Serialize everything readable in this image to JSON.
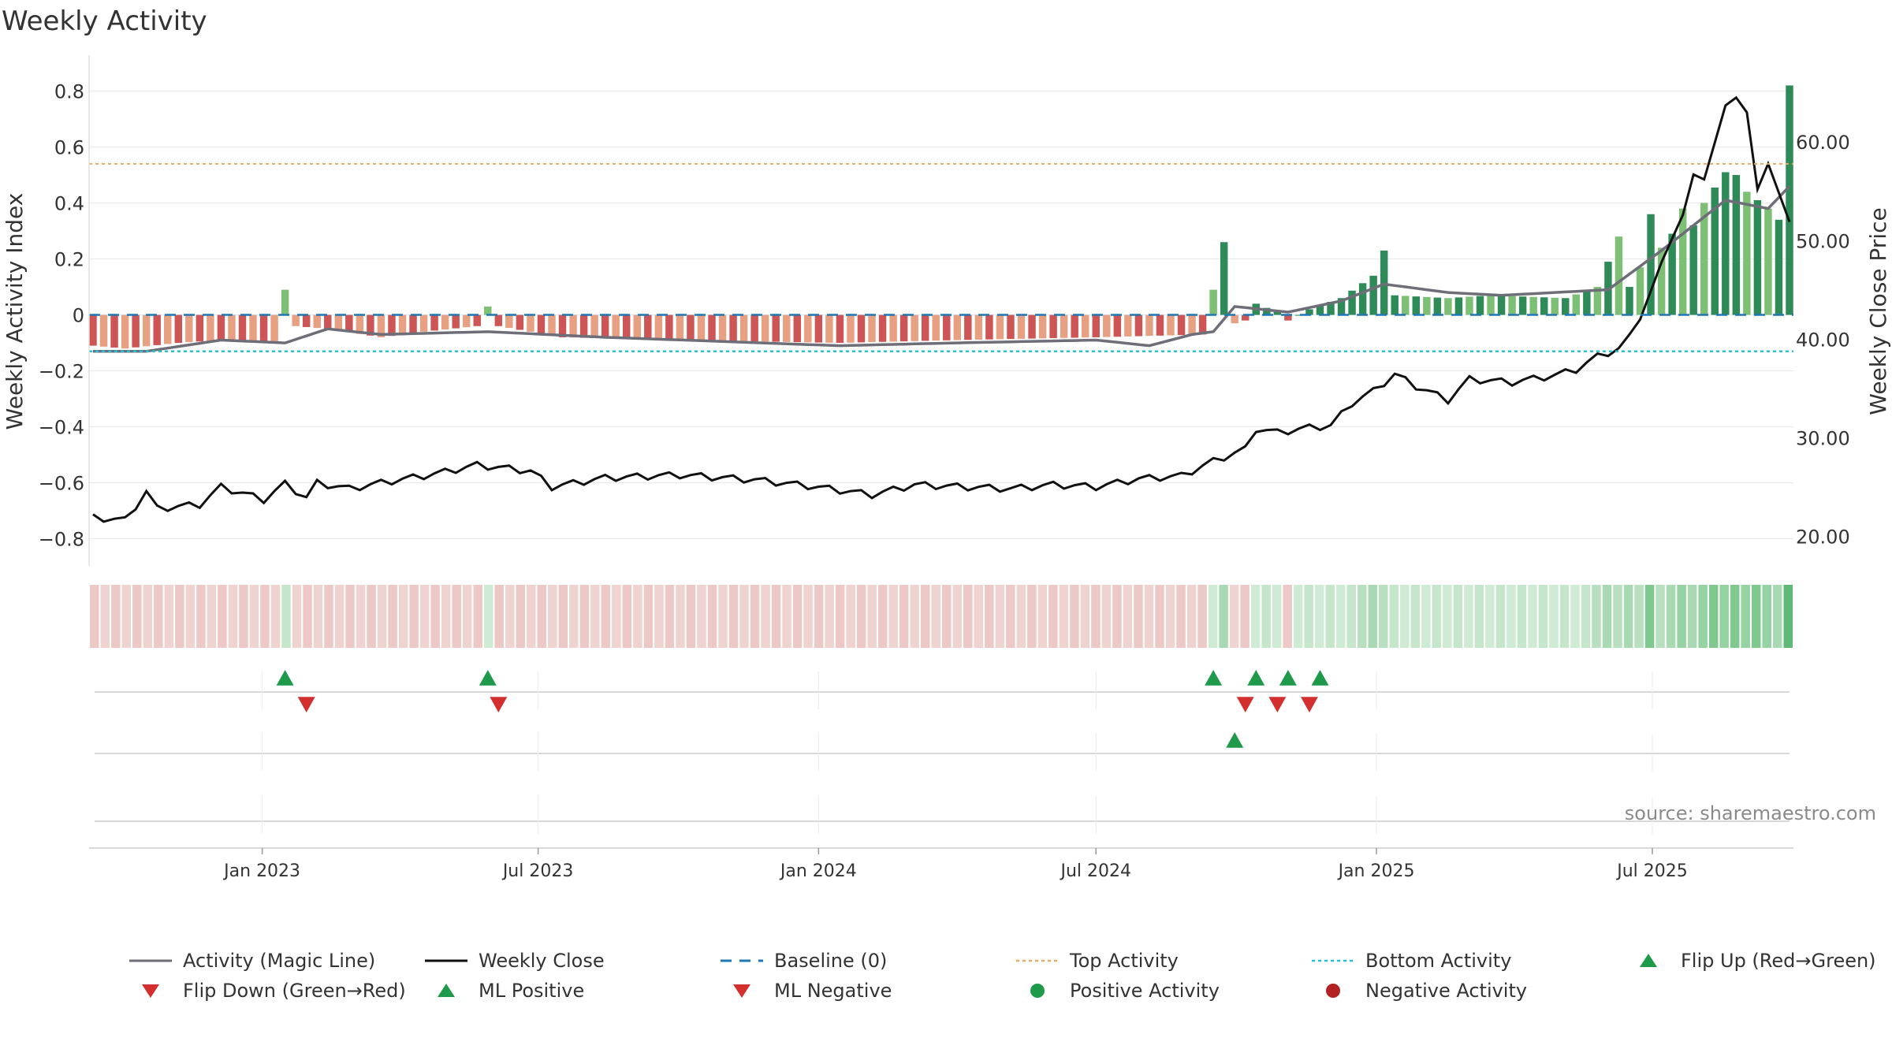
{
  "title": "Weekly Activity",
  "source": "source: sharemaestro.com",
  "colors": {
    "strong_green": "#2e8b57",
    "light_green": "#7dbf74",
    "strong_red": "#cd5555",
    "light_red": "#e8a083",
    "magic_line": "#6e6e78",
    "close_line": "#111111",
    "baseline": "#1f77b4",
    "top_activity": "#f0a860",
    "bottom_activity": "#22c4d4",
    "marker_green": "#1e9a4a",
    "marker_red": "#d32f2f"
  },
  "chart_data": {
    "type": "bar",
    "title": "Weekly Activity",
    "ylabel": "Weekly Activity Index",
    "ylabel_right": "Weekly Close Price",
    "ylim": [
      -0.88,
      0.9
    ],
    "ylim_right": [
      17.5,
      68.0
    ],
    "yticks": [
      "0.8",
      "0.6",
      "0.4",
      "0.2",
      "0",
      "−0.2",
      "−0.4",
      "−0.6",
      "−0.8"
    ],
    "yticks_values": [
      0.8,
      0.6,
      0.4,
      0.2,
      0,
      -0.2,
      -0.4,
      -0.6,
      -0.8
    ],
    "yticks_right": [
      "60.00",
      "50.00",
      "40.00",
      "30.00",
      "20.00"
    ],
    "yticks_right_values": [
      60,
      50,
      40,
      30,
      20
    ],
    "xticks": [
      "Jan 2023",
      "Jul 2023",
      "Jan 2024",
      "Jul 2024",
      "Jan 2025",
      "Jul 2025"
    ],
    "xticks_dates": [
      "2023-01-01",
      "2023-07-01",
      "2024-01-01",
      "2024-07-01",
      "2025-01-01",
      "2025-07-01"
    ],
    "start_date": "2022-09-12",
    "end_date": "2025-09-29",
    "top_activity": 0.54,
    "bottom_activity": -0.13,
    "baseline": 0,
    "grid": true,
    "activity_anchors": [
      [
        "2022-09-12",
        -0.11
      ],
      [
        "2022-10-03",
        -0.12
      ],
      [
        "2022-11-07",
        -0.1
      ],
      [
        "2022-12-05",
        -0.09
      ],
      [
        "2023-01-09",
        -0.1
      ],
      [
        "2023-01-16",
        0.09
      ],
      [
        "2023-01-23",
        -0.04
      ],
      [
        "2023-02-13",
        -0.05
      ],
      [
        "2023-03-20",
        -0.08
      ],
      [
        "2023-04-17",
        -0.06
      ],
      [
        "2023-05-22",
        -0.04
      ],
      [
        "2023-05-29",
        0.03
      ],
      [
        "2023-06-05",
        -0.04
      ],
      [
        "2023-07-17",
        -0.08
      ],
      [
        "2023-10-02",
        -0.09
      ],
      [
        "2024-01-15",
        -0.1
      ],
      [
        "2024-04-01",
        -0.09
      ],
      [
        "2024-07-01",
        -0.08
      ],
      [
        "2024-09-09",
        -0.07
      ],
      [
        "2024-09-16",
        0.09
      ],
      [
        "2024-09-23",
        0.26
      ],
      [
        "2024-09-30",
        -0.03
      ],
      [
        "2024-10-07",
        -0.02
      ],
      [
        "2024-10-14",
        0.04
      ],
      [
        "2024-10-28",
        0.01
      ],
      [
        "2024-11-04",
        -0.02
      ],
      [
        "2024-11-18",
        0.02
      ],
      [
        "2024-12-09",
        0.06
      ],
      [
        "2024-12-30",
        0.14
      ],
      [
        "2025-01-06",
        0.23
      ],
      [
        "2025-01-13",
        0.07
      ],
      [
        "2025-02-17",
        0.06
      ],
      [
        "2025-03-17",
        0.07
      ],
      [
        "2025-05-05",
        0.06
      ],
      [
        "2025-05-26",
        0.1
      ],
      [
        "2025-06-09",
        0.28
      ],
      [
        "2025-06-16",
        0.1
      ],
      [
        "2025-06-23",
        0.17
      ],
      [
        "2025-06-30",
        0.36
      ],
      [
        "2025-07-07",
        0.24
      ],
      [
        "2025-07-14",
        0.29
      ],
      [
        "2025-07-21",
        0.38
      ],
      [
        "2025-07-28",
        0.32
      ],
      [
        "2025-08-04",
        0.4
      ],
      [
        "2025-08-18",
        0.51
      ],
      [
        "2025-08-25",
        0.5
      ],
      [
        "2025-09-01",
        0.44
      ],
      [
        "2025-09-15",
        0.38
      ],
      [
        "2025-09-22",
        0.34
      ],
      [
        "2025-09-29",
        0.82
      ]
    ],
    "magic_line_anchors": [
      [
        "2022-09-12",
        -0.13
      ],
      [
        "2022-10-17",
        -0.13
      ],
      [
        "2022-12-05",
        -0.09
      ],
      [
        "2023-01-16",
        -0.1
      ],
      [
        "2023-02-13",
        -0.05
      ],
      [
        "2023-03-20",
        -0.07
      ],
      [
        "2023-05-29",
        -0.06
      ],
      [
        "2023-08-14",
        -0.08
      ],
      [
        "2024-01-15",
        -0.11
      ],
      [
        "2024-04-01",
        -0.1
      ],
      [
        "2024-07-01",
        -0.09
      ],
      [
        "2024-08-05",
        -0.11
      ],
      [
        "2024-09-02",
        -0.07
      ],
      [
        "2024-09-16",
        -0.06
      ],
      [
        "2024-09-30",
        0.03
      ],
      [
        "2024-11-04",
        0.01
      ],
      [
        "2024-12-09",
        0.05
      ],
      [
        "2025-01-06",
        0.11
      ],
      [
        "2025-02-17",
        0.08
      ],
      [
        "2025-03-24",
        0.07
      ],
      [
        "2025-06-02",
        0.09
      ],
      [
        "2025-07-07",
        0.23
      ],
      [
        "2025-07-28",
        0.32
      ],
      [
        "2025-08-18",
        0.41
      ],
      [
        "2025-09-15",
        0.38
      ],
      [
        "2025-09-29",
        0.46
      ]
    ],
    "close_anchors": [
      [
        "2022-09-12",
        21.9
      ],
      [
        "2022-10-03",
        21.6
      ],
      [
        "2022-10-17",
        24.5
      ],
      [
        "2022-10-24",
        22.8
      ],
      [
        "2022-11-21",
        23.2
      ],
      [
        "2022-12-05",
        25.0
      ],
      [
        "2023-01-02",
        23.7
      ],
      [
        "2023-01-16",
        25.3
      ],
      [
        "2023-01-30",
        23.9
      ],
      [
        "2023-02-06",
        25.4
      ],
      [
        "2023-02-27",
        24.8
      ],
      [
        "2023-03-20",
        25.4
      ],
      [
        "2023-04-24",
        26.3
      ],
      [
        "2023-05-22",
        27.2
      ],
      [
        "2023-06-26",
        26.6
      ],
      [
        "2023-07-10",
        25.0
      ],
      [
        "2023-08-14",
        25.9
      ],
      [
        "2023-10-02",
        26.2
      ],
      [
        "2023-11-20",
        25.7
      ],
      [
        "2023-12-25",
        25.1
      ],
      [
        "2024-02-05",
        24.2
      ],
      [
        "2024-03-04",
        25.2
      ],
      [
        "2024-05-06",
        24.8
      ],
      [
        "2024-06-03",
        25.2
      ],
      [
        "2024-07-01",
        25.0
      ],
      [
        "2024-07-29",
        25.8
      ],
      [
        "2024-08-26",
        26.1
      ],
      [
        "2024-09-16",
        27.6
      ],
      [
        "2024-10-07",
        28.8
      ],
      [
        "2024-10-14",
        30.9
      ],
      [
        "2024-10-28",
        30.5
      ],
      [
        "2024-11-18",
        31.0
      ],
      [
        "2024-12-02",
        31.2
      ],
      [
        "2024-12-16",
        33.5
      ],
      [
        "2024-12-30",
        34.7
      ],
      [
        "2025-01-13",
        36.4
      ],
      [
        "2025-01-27",
        35.2
      ],
      [
        "2025-02-17",
        33.8
      ],
      [
        "2025-03-03",
        35.9
      ],
      [
        "2025-03-31",
        35.6
      ],
      [
        "2025-04-28",
        36.3
      ],
      [
        "2025-05-12",
        36.9
      ],
      [
        "2025-05-26",
        38.2
      ],
      [
        "2025-06-09",
        39.0
      ],
      [
        "2025-06-23",
        42.0
      ],
      [
        "2025-07-07",
        47.8
      ],
      [
        "2025-07-21",
        52.6
      ],
      [
        "2025-07-28",
        56.7
      ],
      [
        "2025-08-04",
        56.2
      ],
      [
        "2025-08-18",
        63.7
      ],
      [
        "2025-08-25",
        64.5
      ],
      [
        "2025-09-01",
        63.0
      ],
      [
        "2025-09-08",
        55.2
      ],
      [
        "2025-09-15",
        57.8
      ],
      [
        "2025-09-29",
        51.9
      ]
    ],
    "flip_up_dates": [
      "2023-01-16",
      "2023-05-29",
      "2024-09-16",
      "2024-10-14",
      "2024-11-04",
      "2024-11-25"
    ],
    "flip_down_dates": [
      "2023-01-30",
      "2023-06-05",
      "2024-10-07",
      "2024-10-28",
      "2024-11-18"
    ],
    "ml_positive_dates": [
      "2024-09-30"
    ],
    "ml_negative_dates": []
  },
  "legend": [
    {
      "label": "Activity (Magic Line)",
      "kind": "line",
      "color": "#6e6e78"
    },
    {
      "label": "Weekly Close",
      "kind": "line",
      "color": "#111111"
    },
    {
      "label": "Baseline (0)",
      "kind": "dash",
      "color": "#1f77b4"
    },
    {
      "label": "Top Activity",
      "kind": "dot",
      "color": "#f0a860"
    },
    {
      "label": "Bottom Activity",
      "kind": "dot",
      "color": "#22c4d4"
    },
    {
      "label": "Flip Up (Red→Green)",
      "kind": "tri-up",
      "color": "#1e9a4a"
    },
    {
      "label": "Flip Down (Green→Red)",
      "kind": "tri-down",
      "color": "#d32f2f"
    },
    {
      "label": "ML Positive",
      "kind": "tri-up",
      "color": "#1e9a4a"
    },
    {
      "label": "ML Negative",
      "kind": "tri-down",
      "color": "#d32f2f"
    },
    {
      "label": "Positive Activity",
      "kind": "circle",
      "color": "#1e9a4a"
    },
    {
      "label": "Negative Activity",
      "kind": "circle",
      "color": "#b22222"
    }
  ]
}
